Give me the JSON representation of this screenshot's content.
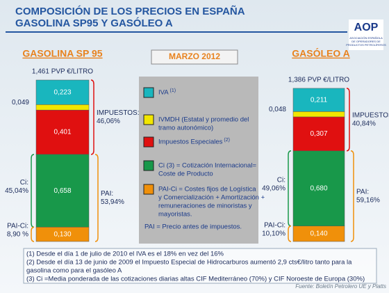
{
  "title": [
    "COMPOSICIÓN DE LOS PRECIOS EN ESPAÑA",
    "GASOLINA SP95 Y GASÓLEO A"
  ],
  "logo": {
    "name": "AOP",
    "sub": [
      "ASOCIACIÓN ESPAÑOLA",
      "DE OPERADORES DE",
      "PRODUCTOS PETROLÍFEROS"
    ]
  },
  "period": "MARZO 2012",
  "legend": [
    {
      "lines": [
        "IVA"
      ],
      "note": "(1)",
      "color": "#19b6be"
    },
    {
      "lines": [
        "IVMDH (Estatal y promedio del",
        "tramo autonómico)"
      ],
      "color": "#f2e600"
    },
    {
      "lines": [
        "Impuestos Especiales"
      ],
      "note": "(2)",
      "color": "#e01010"
    },
    {
      "lines": [
        "Ci (3) = Cotización Internacional=",
        "Coste de Producto"
      ],
      "color": "#18984a"
    },
    {
      "lines": [
        "PAI-Ci = Costes fijos de Logística",
        "y Comercialización + Amortización +",
        "remuneraciones de minoristas y",
        "mayoristas."
      ],
      "color": "#f0900a"
    },
    {
      "lines": [
        "PAI =  Precio antes de impuestos."
      ]
    }
  ],
  "bars": [
    {
      "name": "GASOLINA SP 95",
      "total": "1,461 PVP €/LITRO",
      "values": [
        0.223,
        0.049,
        0.401,
        0.658,
        0.13
      ],
      "value_labels": [
        "0,223",
        "0,049",
        "0,401",
        "0,658",
        "0,130"
      ],
      "impuestos": [
        "IMPUESTOS:",
        "46,06%"
      ],
      "ci": [
        "Ci:",
        "45,04%"
      ],
      "pai": [
        "PAI:",
        "53,94%"
      ],
      "paici": [
        "PAI-Ci:",
        "8,90 %"
      ]
    },
    {
      "name": "GASÓLEO A",
      "total": "1,386 PVP €/LITRO",
      "values": [
        0.211,
        0.048,
        0.307,
        0.68,
        0.14
      ],
      "value_labels": [
        "0,211",
        "0,048",
        "0,307",
        "0,680",
        "0,140"
      ],
      "impuestos": [
        "IMPUESTOS:",
        "40,84%"
      ],
      "ci": [
        "Ci:",
        "49,06%"
      ],
      "pai": [
        "PAI:",
        "59,16%"
      ],
      "paici": [
        "PAI-Ci:",
        "10,10%"
      ]
    }
  ],
  "footnotes": [
    "(1) Desde el día 1 de julio de 2010 el IVA es el 18% en vez del 16%",
    "(2) Desde el día 13 de junio de 2009 el Impuesto Especial de Hidrocarburos aumentó 2,9 cts€/litro tanto para la",
    "gasolina como para el gasóleo A",
    "(3) Ci =Media ponderada de las cotizaciones diarias altas CIF Mediterráneo (70%) y CIF Noroeste de Europa (30%)"
  ],
  "source": "Fuente: Boletín Petrolero UE y Platts"
}
